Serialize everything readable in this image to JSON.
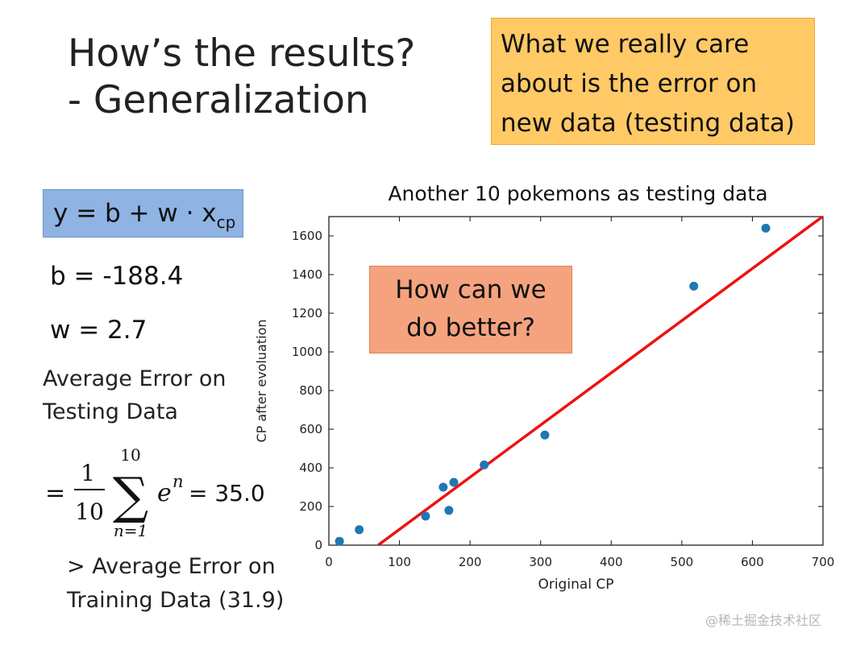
{
  "slide": {
    "title_line1": "How’s the results?",
    "title_line2": "- Generalization",
    "note_lines": [
      "What we really care",
      "about is the error on",
      "new data (testing data)"
    ],
    "formula": {
      "lhs": "y = b + w · x",
      "subscript": "cp"
    },
    "b_text": "b = -188.4",
    "w_text": "w = 2.7",
    "avg_error_lines": [
      "Average Error on",
      "Testing Data"
    ],
    "sum_expr": {
      "equals": "=",
      "numerator": "1",
      "denominator": "10",
      "upper": "10",
      "lower": "n=1",
      "sigma": "∑",
      "term_base": "e",
      "term_exp": "n",
      "result": "= 35.0"
    },
    "comparison_lines": [
      "> Average Error on",
      "Training Data (31.9)"
    ],
    "advice_lines": [
      "How can we",
      "do better?"
    ],
    "watermark": "@稀土掘金技术社区"
  },
  "chart_data": {
    "type": "scatter",
    "title": "Another 10 pokemons as testing data",
    "xlabel": "Original CP",
    "ylabel": "CP after evoluation",
    "xlim": [
      0,
      700
    ],
    "ylim": [
      0,
      1700
    ],
    "xticks": [
      0,
      100,
      200,
      300,
      400,
      500,
      600,
      700
    ],
    "yticks": [
      0,
      200,
      400,
      600,
      800,
      1000,
      1200,
      1400,
      1600
    ],
    "points": [
      {
        "x": 15,
        "y": 20
      },
      {
        "x": 43,
        "y": 80
      },
      {
        "x": 137,
        "y": 150
      },
      {
        "x": 162,
        "y": 300
      },
      {
        "x": 170,
        "y": 180
      },
      {
        "x": 177,
        "y": 325
      },
      {
        "x": 220,
        "y": 415
      },
      {
        "x": 306,
        "y": 570
      },
      {
        "x": 517,
        "y": 1340
      },
      {
        "x": 619,
        "y": 1640
      }
    ],
    "fit_line": {
      "b": -188.4,
      "w": 2.7
    },
    "point_color": "#1f77b4",
    "line_color": "#ee1111",
    "grid": false
  }
}
